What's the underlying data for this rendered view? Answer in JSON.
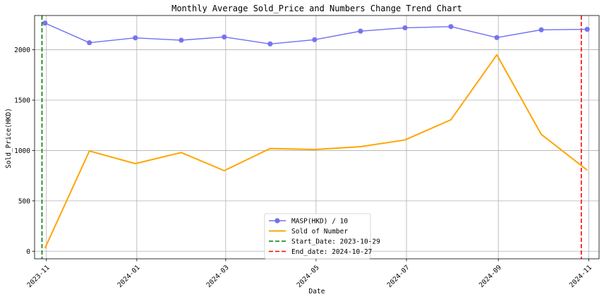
{
  "chart_data": {
    "type": "line",
    "title": "Monthly Average Sold_Price and Numbers Change Trend Chart",
    "xlabel": "Date",
    "ylabel": "Sold_Price(HKD)",
    "ylim": [
      -75,
      2340
    ],
    "yticks": [
      0,
      500,
      1000,
      1500,
      2000
    ],
    "xlim": [
      "2023-10-24",
      "2024-11-08"
    ],
    "xticks": [
      {
        "date": "2023-11-01",
        "label": "2023-11"
      },
      {
        "date": "2024-01-01",
        "label": "2024-01"
      },
      {
        "date": "2024-03-01",
        "label": "2024-03"
      },
      {
        "date": "2024-05-01",
        "label": "2024-05"
      },
      {
        "date": "2024-07-01",
        "label": "2024-07"
      },
      {
        "date": "2024-09-01",
        "label": "2024-09"
      },
      {
        "date": "2024-11-01",
        "label": "2024-11"
      }
    ],
    "grid": true,
    "legend_position": "bottom-center",
    "x": [
      "2023-10-31",
      "2023-11-30",
      "2023-12-31",
      "2024-01-31",
      "2024-02-29",
      "2024-03-31",
      "2024-04-30",
      "2024-05-31",
      "2024-06-30",
      "2024-07-31",
      "2024-08-31",
      "2024-09-30",
      "2024-10-31"
    ],
    "series": [
      {
        "name": "MASP(HKD) / 10",
        "color": "#7070f0",
        "marker": "circle",
        "values": [
          2265,
          2070,
          2118,
          2095,
          2127,
          2058,
          2100,
          2185,
          2218,
          2230,
          2121,
          2198,
          2203
        ]
      },
      {
        "name": "Sold of Number",
        "color": "#ffa500",
        "marker": "none",
        "values": [
          30,
          995,
          870,
          980,
          800,
          1020,
          1010,
          1038,
          1105,
          1305,
          1950,
          1160,
          805
        ]
      }
    ],
    "vlines": [
      {
        "name": "Start_Date: 2023-10-29",
        "date": "2023-10-29",
        "color": "#008000"
      },
      {
        "name": "End_date: 2024-10-27",
        "date": "2024-10-27",
        "color": "#ff0000"
      }
    ]
  }
}
